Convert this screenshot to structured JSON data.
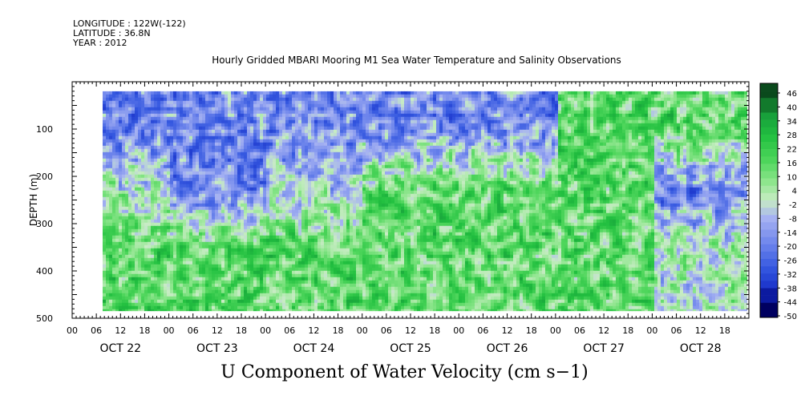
{
  "header": {
    "longitude": "LONGITUDE : 122W(-122)",
    "latitude": "LATITUDE : 36.8N",
    "year": "YEAR : 2012",
    "title": "Hourly Gridded MBARI Mooring M1 Sea Water Temperature and Salinity Observations"
  },
  "chart_data": {
    "type": "heatmap",
    "title": "Hourly Gridded MBARI Mooring M1 Sea Water Temperature and Salinity Observations",
    "xlabel": "",
    "ylabel": "DEPTH (m)",
    "variable_label": "U Component of Water Velocity (cm s−1)",
    "x_hour_ticks": [
      "00",
      "06",
      "12",
      "18",
      "00",
      "06",
      "12",
      "18",
      "00",
      "06",
      "12",
      "18",
      "00",
      "06",
      "12",
      "18",
      "00",
      "06",
      "12",
      "18",
      "00",
      "06",
      "12",
      "18",
      "00",
      "06",
      "12",
      "18"
    ],
    "x_day_labels": [
      "OCT 22",
      "OCT 23",
      "OCT 24",
      "OCT 25",
      "OCT 26",
      "OCT 27",
      "OCT 28"
    ],
    "y_ticks": [
      100,
      200,
      300,
      400,
      500
    ],
    "y_range": [
      500,
      0
    ],
    "data_depth_range_m": [
      20,
      485
    ],
    "colorbar_labels": [
      "46",
      "40",
      "34",
      "28",
      "22",
      "16",
      "10",
      "4",
      "-2",
      "-8",
      "-14",
      "-20",
      "-26",
      "-32",
      "-38",
      "-44",
      "-50"
    ],
    "colorbar_range": [
      -50,
      46
    ],
    "colors": {
      "strong_negative": "#000060",
      "negative": "#2a3fd0",
      "weak_negative": "#a8b0f0",
      "near_zero": "#cdecc8",
      "weak_positive": "#8fe890",
      "positive": "#22c840",
      "strong_positive": "#0a4a1c"
    },
    "pattern_description_columns_by_day": [
      {
        "day": "OCT 22",
        "surface": "blue",
        "upper": "mixed",
        "deep": "green"
      },
      {
        "day": "OCT 23",
        "surface": "blue",
        "upper": "blue",
        "deep": "green"
      },
      {
        "day": "OCT 24",
        "surface": "blue",
        "upper": "blue-green",
        "deep": "green"
      },
      {
        "day": "OCT 25",
        "surface": "blue",
        "upper": "green",
        "deep": "green"
      },
      {
        "day": "OCT 26",
        "surface": "blue",
        "upper": "green",
        "deep": "green"
      },
      {
        "day": "OCT 27",
        "surface": "green",
        "upper": "green",
        "deep": "green"
      },
      {
        "day": "OCT 28",
        "surface": "green",
        "upper": "blue",
        "deep": "mixed"
      }
    ]
  }
}
